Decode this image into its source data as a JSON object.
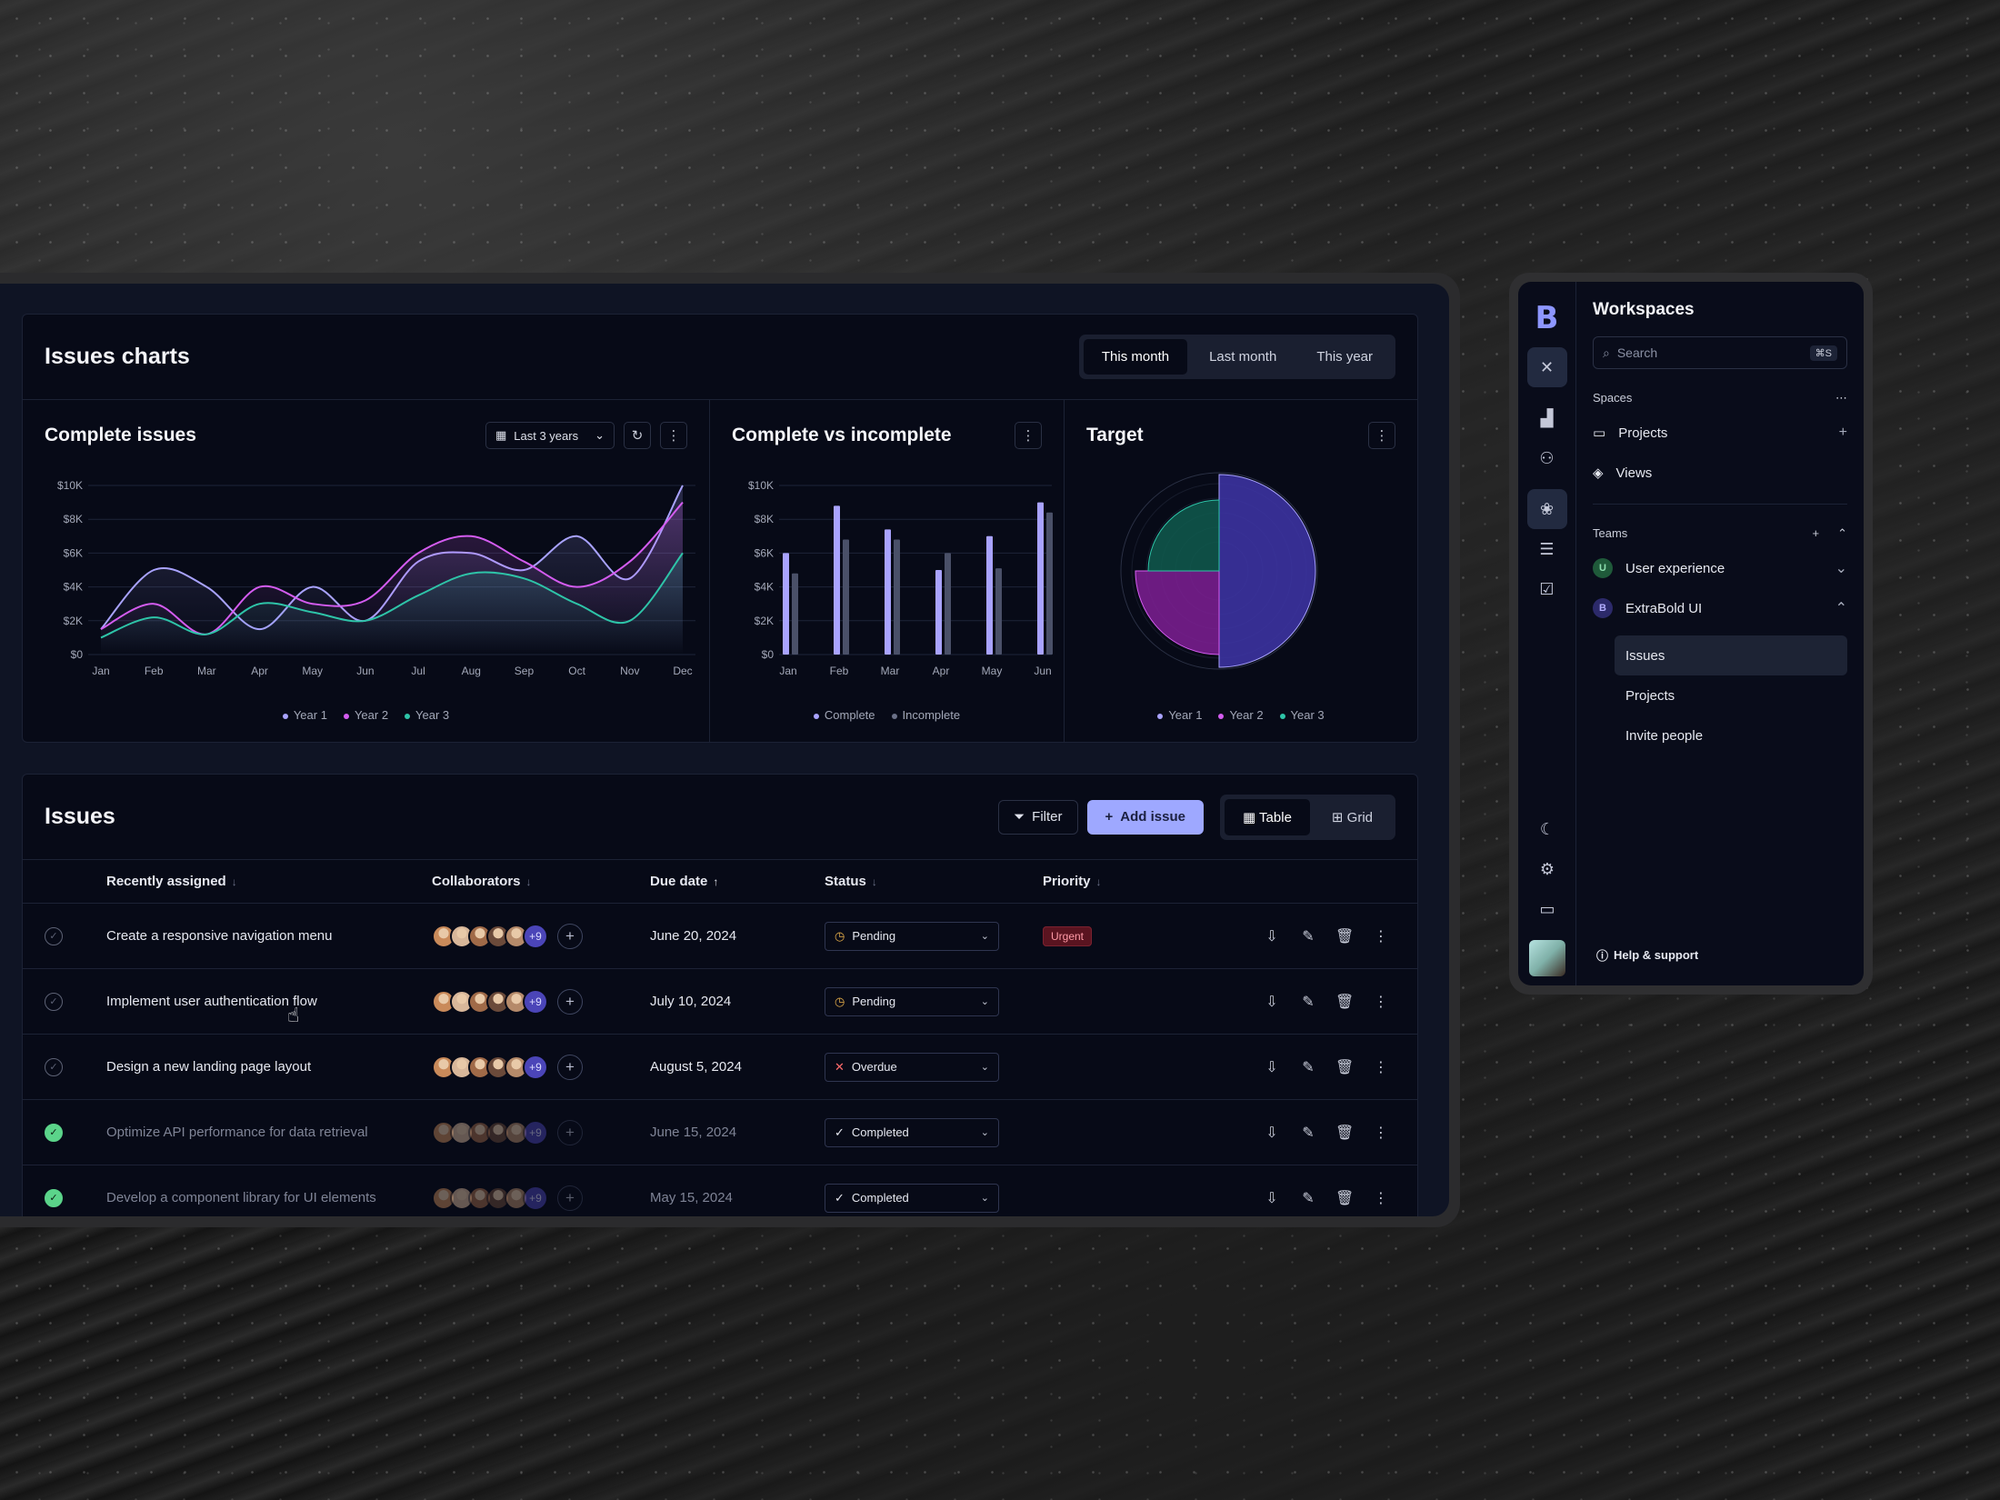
{
  "charts_header": {
    "title": "Issues charts",
    "ranges": [
      "This month",
      "Last month",
      "This year"
    ],
    "active_range": "This month"
  },
  "complete_issues": {
    "title": "Complete issues",
    "range_label": "Last 3 years",
    "legend": [
      "Year 1",
      "Year 2",
      "Year 3"
    ]
  },
  "complete_vs_incomplete": {
    "title": "Complete vs incomplete",
    "legend": [
      "Complete",
      "Incomplete"
    ]
  },
  "target": {
    "title": "Target",
    "legend": [
      "Year 1",
      "Year 2",
      "Year 3"
    ]
  },
  "chart_data": [
    {
      "type": "line",
      "title": "Complete issues",
      "categories": [
        "Jan",
        "Feb",
        "Mar",
        "Apr",
        "May",
        "Jun",
        "Jul",
        "Aug",
        "Sep",
        "Oct",
        "Nov",
        "Dec"
      ],
      "y_ticks": [
        "$0",
        "$2K",
        "$4K",
        "$6K",
        "$8K",
        "$10K"
      ],
      "ylim": [
        0,
        10000
      ],
      "series": [
        {
          "name": "Year 1",
          "color": "#a9a3ff",
          "values": [
            1500,
            5000,
            4000,
            1500,
            4000,
            2000,
            5500,
            6000,
            5000,
            7000,
            4500,
            10000
          ]
        },
        {
          "name": "Year 2",
          "color": "#d45cf0",
          "values": [
            1500,
            3000,
            1200,
            4000,
            3000,
            3200,
            6000,
            7000,
            5500,
            4000,
            5500,
            9000
          ]
        },
        {
          "name": "Year 3",
          "color": "#2ec4a8",
          "values": [
            1000,
            2200,
            1200,
            3000,
            2500,
            2000,
            3500,
            4800,
            4500,
            3000,
            2000,
            6000
          ]
        }
      ]
    },
    {
      "type": "bar",
      "title": "Complete vs incomplete",
      "categories": [
        "Jan",
        "Feb",
        "Mar",
        "Apr",
        "May",
        "Jun"
      ],
      "y_ticks": [
        "$0",
        "$2K",
        "$4K",
        "$6K",
        "$8K",
        "$10K"
      ],
      "ylim": [
        0,
        10000
      ],
      "series": [
        {
          "name": "Complete",
          "color": "#a9a3ff",
          "values": [
            6000,
            8800,
            7400,
            5000,
            7000,
            9000
          ]
        },
        {
          "name": "Incomplete",
          "color": "#4a5068",
          "values": [
            4800,
            6800,
            6800,
            6000,
            5100,
            8400
          ]
        }
      ]
    },
    {
      "type": "pie",
      "title": "Target",
      "series": [
        {
          "name": "Year 1",
          "color": "#3e35a8",
          "value": 50
        },
        {
          "name": "Year 2",
          "color": "#7e1f94",
          "value": 25
        },
        {
          "name": "Year 3",
          "color": "#0f5a4e",
          "value": 25
        }
      ]
    }
  ],
  "issues": {
    "title": "Issues",
    "filter_label": "Filter",
    "add_label": "Add issue",
    "view_table": "Table",
    "view_grid": "Grid",
    "columns": [
      "Recently assigned",
      "Collaborators",
      "Due date",
      "Status",
      "Priority"
    ],
    "more_count": "+9",
    "rows": [
      {
        "title": "Create a responsive navigation menu",
        "due": "June 20, 2024",
        "status": "Pending",
        "status_icon": "clock-icon",
        "priority": "Urgent",
        "done": false
      },
      {
        "title": "Implement user authentication flow",
        "due": "July 10, 2024",
        "status": "Pending",
        "status_icon": "clock-icon",
        "priority": "",
        "done": false
      },
      {
        "title": "Design a new landing page layout",
        "due": "August 5, 2024",
        "status": "Overdue",
        "status_icon": "x-icon",
        "priority": "",
        "done": false
      },
      {
        "title": "Optimize API performance for data retrieval",
        "due": "June  15, 2024",
        "status": "Completed",
        "status_icon": "check-icon",
        "priority": "",
        "done": true
      },
      {
        "title": "Develop a component library for UI elements",
        "due": "May 15, 2024",
        "status": "Completed",
        "status_icon": "check-icon",
        "priority": "",
        "done": true
      }
    ]
  },
  "sidebar": {
    "title": "Workspaces",
    "search_placeholder": "Search",
    "search_shortcut": "⌘S",
    "spaces_label": "Spaces",
    "spaces": [
      "Projects",
      "Views"
    ],
    "teams_label": "Teams",
    "teams": [
      {
        "initial": "U",
        "name": "User experience",
        "color": "#2e7d4f"
      },
      {
        "initial": "B",
        "name": "ExtraBold UI",
        "color": "#3f3a9a"
      }
    ],
    "team_items": [
      "Issues",
      "Projects",
      "Invite people"
    ],
    "active_team_item": "Issues",
    "help_label": "Help & support"
  },
  "avatar_colors": [
    "#c98a5a",
    "#d8b79a",
    "#a06a48",
    "#6b4a3a",
    "#b58a6a"
  ]
}
